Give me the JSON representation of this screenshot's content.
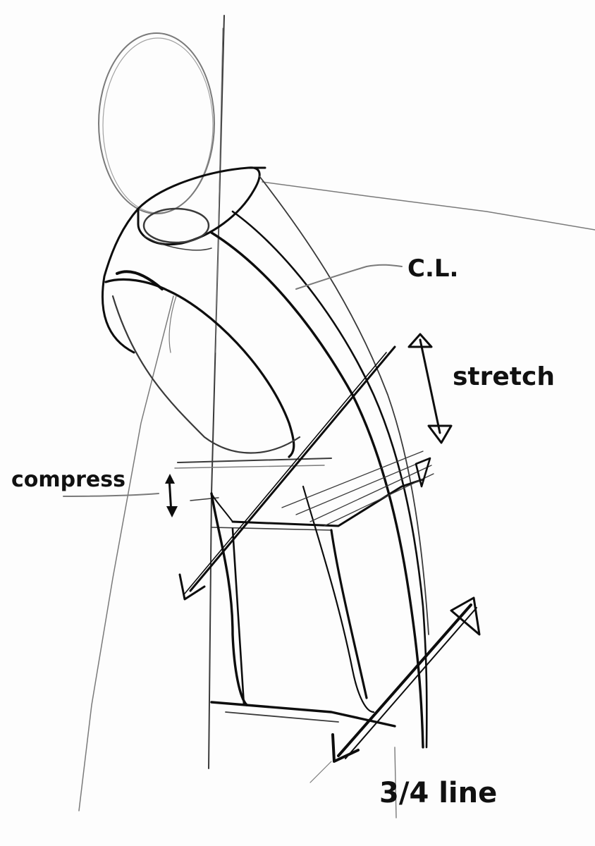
{
  "labels": {
    "centerline": "C.L.",
    "stretch": "stretch",
    "compress": "compress",
    "three_quarter_line": "3/4 line"
  },
  "colors": {
    "paper": "#fdfdfd",
    "graphite_dark": "#0d0d0d",
    "graphite_mid": "#3a3a3a",
    "graphite_light": "#7a7a7a"
  }
}
